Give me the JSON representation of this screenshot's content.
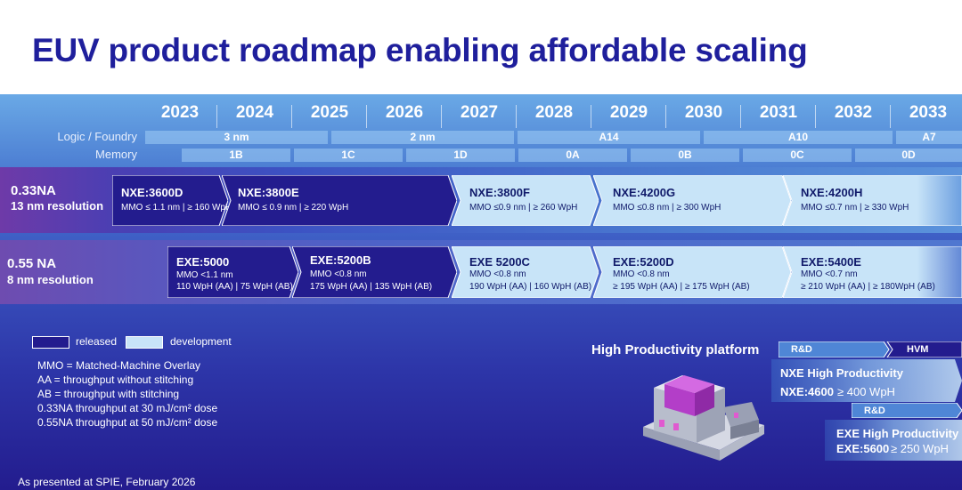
{
  "title": "EUV product roadmap enabling affordable scaling",
  "years": [
    "2023",
    "2024",
    "2025",
    "2026",
    "2027",
    "2028",
    "2029",
    "2030",
    "2031",
    "2032",
    "2033"
  ],
  "nodes": {
    "logic_label": "Logic / Foundry",
    "memory_label": "Memory",
    "logic": [
      "3 nm",
      "2 nm",
      "A14",
      "A10",
      "A7"
    ],
    "memory": [
      "1B",
      "1C",
      "1D",
      "0A",
      "0B",
      "0C",
      "0D"
    ]
  },
  "na033": {
    "label": "0.33NA",
    "resolution": "13 nm resolution",
    "products": [
      {
        "name": "NXE:3600D",
        "line1": "MMO ≤ 1.1 nm | ≥ 160 WpH",
        "line2": "",
        "status": "released"
      },
      {
        "name": "NXE:3800E",
        "line1": "MMO  ≤ 0.9 nm | ≥ 220 WpH",
        "line2": "",
        "status": "released"
      },
      {
        "name": "NXE:3800F",
        "line1": "MMO ≤0.9 nm | ≥ 260 WpH",
        "line2": "",
        "status": "development"
      },
      {
        "name": "NXE:4200G",
        "line1": "MMO ≤0.8 nm | ≥ 300 WpH",
        "line2": "",
        "status": "development"
      },
      {
        "name": "NXE:4200H",
        "line1": "MMO ≤0.7 nm | ≥ 330 WpH",
        "line2": "",
        "status": "development"
      }
    ]
  },
  "na055": {
    "label": "0.55 NA",
    "resolution": "8 nm resolution",
    "products": [
      {
        "name": "EXE:5000",
        "line1": "MMO <1.1 nm",
        "line2": "110 WpH (AA) | 75 WpH (AB)",
        "status": "released"
      },
      {
        "name": "EXE:5200B",
        "line1": "MMO <0.8 nm",
        "line2": "175 WpH (AA) | 135 WpH (AB)",
        "status": "released"
      },
      {
        "name": "EXE 5200C",
        "line1": "MMO <0.8 nm",
        "line2": "190 WpH (AA) | 160 WpH (AB)",
        "status": "development"
      },
      {
        "name": "EXE:5200D",
        "line1": "MMO <0.8 nm",
        "line2": "≥ 195 WpH (AA) | ≥ 175 WpH (AB)",
        "status": "development"
      },
      {
        "name": "EXE:5400E",
        "line1": "MMO <0.7 nm",
        "line2": "≥ 210 WpH (AA) | ≥ 180WpH (AB)",
        "status": "development"
      }
    ]
  },
  "legend": {
    "released": "released",
    "development": "development"
  },
  "notes": [
    "MMO = Matched-Machine Overlay",
    "AA = throughput  without  stitching",
    "AB = throughput  with stitching",
    "0.33NA throughput  at 30 mJ/cm² dose",
    "0.55NA throughput  at 50 mJ/cm² dose"
  ],
  "footer": "As presented at SPIE, February 2026",
  "high_productivity": {
    "title": "High Productivity platform",
    "rd_label": "R&D",
    "hvm_label": "HVM",
    "rd2_label": "R&D",
    "nxe_title": "NXE High Productivity",
    "nxe_model": "NXE:4600",
    "nxe_spec": "≥ 400 WpH",
    "exe_title": "EXE  High Productivity",
    "exe_model": "EXE:5600",
    "exe_spec": "≥ 250 WpH"
  },
  "colors": {
    "title": "#1f1f9c",
    "released": "#231c8e",
    "development": "#c8e4f8",
    "background": "#2d35a8"
  }
}
